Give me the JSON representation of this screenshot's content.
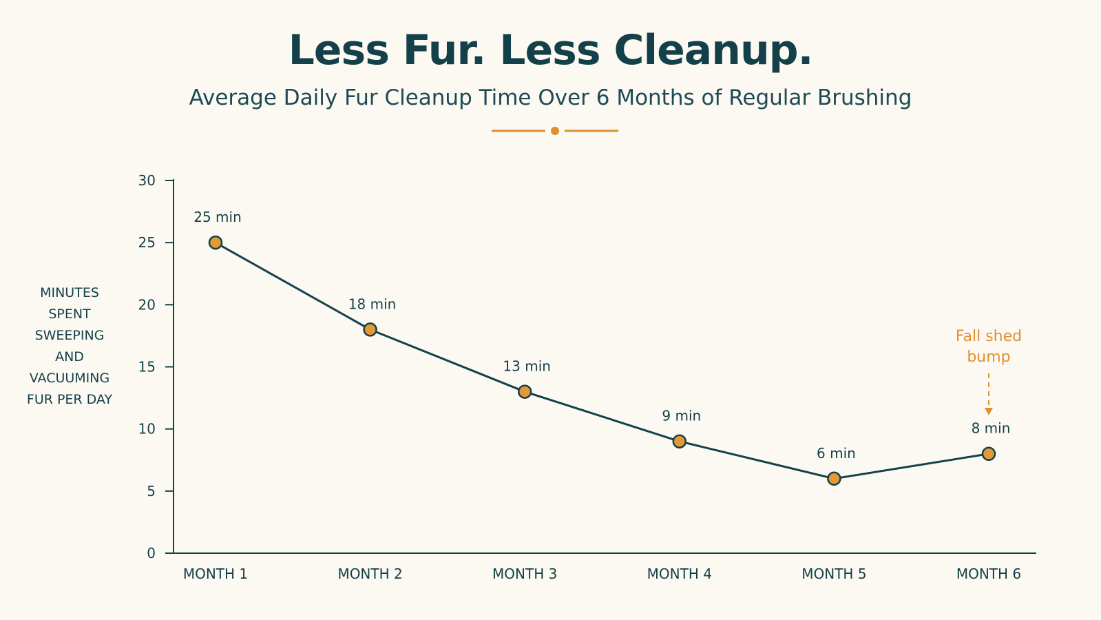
{
  "colors": {
    "background": "#fcf9f2",
    "ink": "#14404a",
    "accent": "#e0902f",
    "marker_fill": "#e39a35"
  },
  "chart_data": {
    "type": "line",
    "title": "Less Fur. Less Cleanup.",
    "subtitle": "Average Daily Fur Cleanup Time Over 6 Months of Regular Brushing",
    "xlabel": "",
    "ylabel": "MINUTES SPENT SWEEPING AND VACUUMING FUR PER DAY",
    "ylabel_lines": [
      "MINUTES",
      "SPENT",
      "SWEEPING",
      "AND",
      "VACUUMING",
      "FUR PER DAY"
    ],
    "categories": [
      "MONTH 1",
      "MONTH 2",
      "MONTH 3",
      "MONTH 4",
      "MONTH 5",
      "MONTH 6"
    ],
    "values": [
      25,
      18,
      13,
      9,
      6,
      8
    ],
    "data_labels": [
      "25 min",
      "18 min",
      "13 min",
      "9 min",
      "6 min",
      "8 min"
    ],
    "ylim": [
      0,
      30
    ],
    "yticks": [
      0,
      5,
      10,
      15,
      20,
      25,
      30
    ],
    "grid": false,
    "legend": "none",
    "annotations": [
      {
        "category_index": 5,
        "lines": [
          "Fall shed",
          "bump"
        ]
      }
    ]
  }
}
